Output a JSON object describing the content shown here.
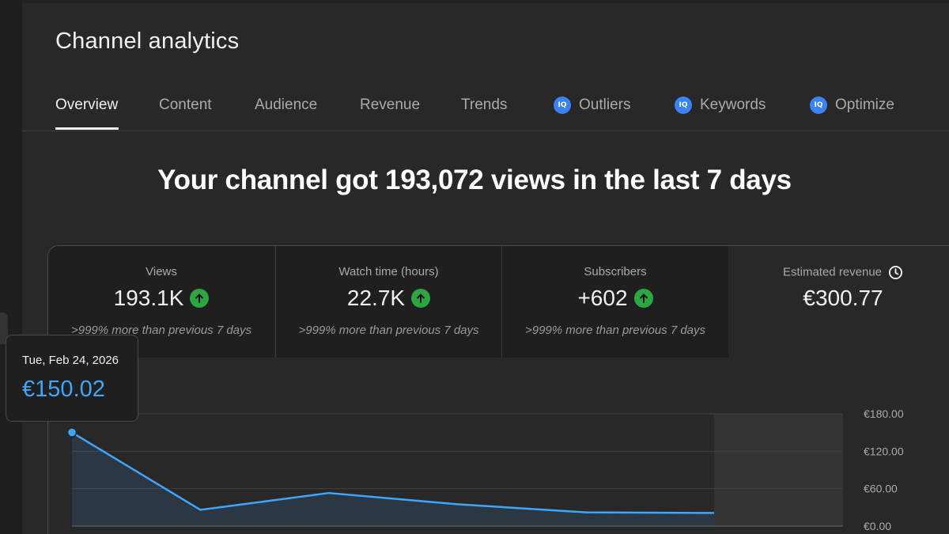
{
  "page": {
    "title": "Channel analytics"
  },
  "tabs": [
    {
      "label": "Overview",
      "active": true,
      "icon": null
    },
    {
      "label": "Content",
      "active": false,
      "icon": null
    },
    {
      "label": "Audience",
      "active": false,
      "icon": null
    },
    {
      "label": "Revenue",
      "active": false,
      "icon": null
    },
    {
      "label": "Trends",
      "active": false,
      "icon": null
    },
    {
      "label": "Outliers",
      "active": false,
      "icon": "iq-icon"
    },
    {
      "label": "Keywords",
      "active": false,
      "icon": "iq-icon"
    },
    {
      "label": "Optimize",
      "active": false,
      "icon": "iq-icon"
    }
  ],
  "iq_icon_text": "IQ",
  "headline": "Your channel got 193,072 views in the last 7 days",
  "metrics": [
    {
      "label": "Views",
      "value": "193.1K",
      "trend": "up",
      "note": ">999% more than previous 7 days"
    },
    {
      "label": "Watch time (hours)",
      "value": "22.7K",
      "trend": "up",
      "note": ">999% more than previous 7 days"
    },
    {
      "label": "Subscribers",
      "value": "+602",
      "trend": "up",
      "note": ">999% more than previous 7 days"
    },
    {
      "label": "Estimated revenue",
      "value": "€300.77",
      "trend": null,
      "note": "",
      "icon": "clock-icon"
    }
  ],
  "tooltip": {
    "date": "Tue, Feb 24, 2026",
    "value": "€150.02"
  },
  "colors": {
    "accent": "#3ea6ff",
    "line": "#3ea6ff",
    "trend_up": "#2ba640",
    "background": "#282828"
  },
  "chart_data": {
    "type": "area",
    "series": [
      {
        "values": [
          150.02,
          26,
          53,
          35,
          22,
          21
        ]
      }
    ],
    "y_tick_labels": [
      "€180.00",
      "€120.00",
      "€60.00",
      "€0.00"
    ],
    "y_ticks": [
      180,
      120,
      60,
      0
    ],
    "ylim": [
      0,
      180
    ],
    "grid": true,
    "y_axis_position": "right",
    "shaded_region": "last-day"
  }
}
